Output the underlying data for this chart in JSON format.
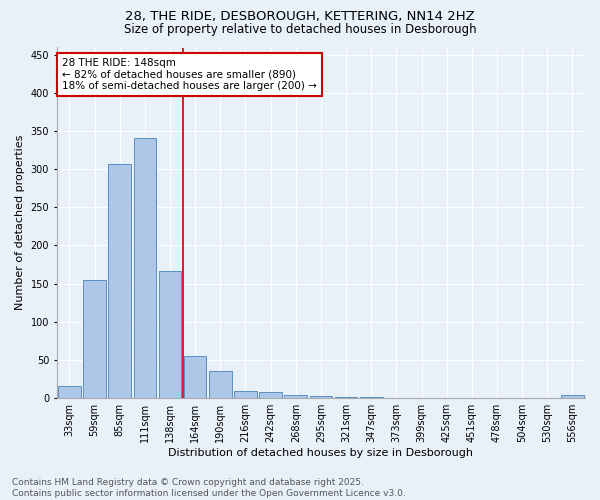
{
  "title_line1": "28, THE RIDE, DESBOROUGH, KETTERING, NN14 2HZ",
  "title_line2": "Size of property relative to detached houses in Desborough",
  "xlabel": "Distribution of detached houses by size in Desborough",
  "ylabel": "Number of detached properties",
  "bar_labels": [
    "33sqm",
    "59sqm",
    "85sqm",
    "111sqm",
    "138sqm",
    "164sqm",
    "190sqm",
    "216sqm",
    "242sqm",
    "268sqm",
    "295sqm",
    "321sqm",
    "347sqm",
    "373sqm",
    "399sqm",
    "425sqm",
    "451sqm",
    "478sqm",
    "504sqm",
    "530sqm",
    "556sqm"
  ],
  "bar_values": [
    15,
    155,
    307,
    341,
    167,
    55,
    35,
    9,
    8,
    4,
    2,
    1,
    1,
    0,
    0,
    0,
    0,
    0,
    0,
    0,
    3
  ],
  "bar_color": "#aec6e8",
  "bar_edge_color": "#5a8fc0",
  "background_color": "#e8f0f8",
  "vline_index": 4,
  "vline_color": "#cc0000",
  "annotation_text": "28 THE RIDE: 148sqm\n← 82% of detached houses are smaller (890)\n18% of semi-detached houses are larger (200) →",
  "annotation_box_color": "white",
  "annotation_box_edge": "#cc0000",
  "ylim": [
    0,
    460
  ],
  "yticks": [
    0,
    50,
    100,
    150,
    200,
    250,
    300,
    350,
    400,
    450
  ],
  "footer_text": "Contains HM Land Registry data © Crown copyright and database right 2025.\nContains public sector information licensed under the Open Government Licence v3.0.",
  "title_fontsize": 9.5,
  "subtitle_fontsize": 8.5,
  "axis_label_fontsize": 8,
  "tick_fontsize": 7,
  "annotation_fontsize": 7.5,
  "footer_fontsize": 6.5
}
